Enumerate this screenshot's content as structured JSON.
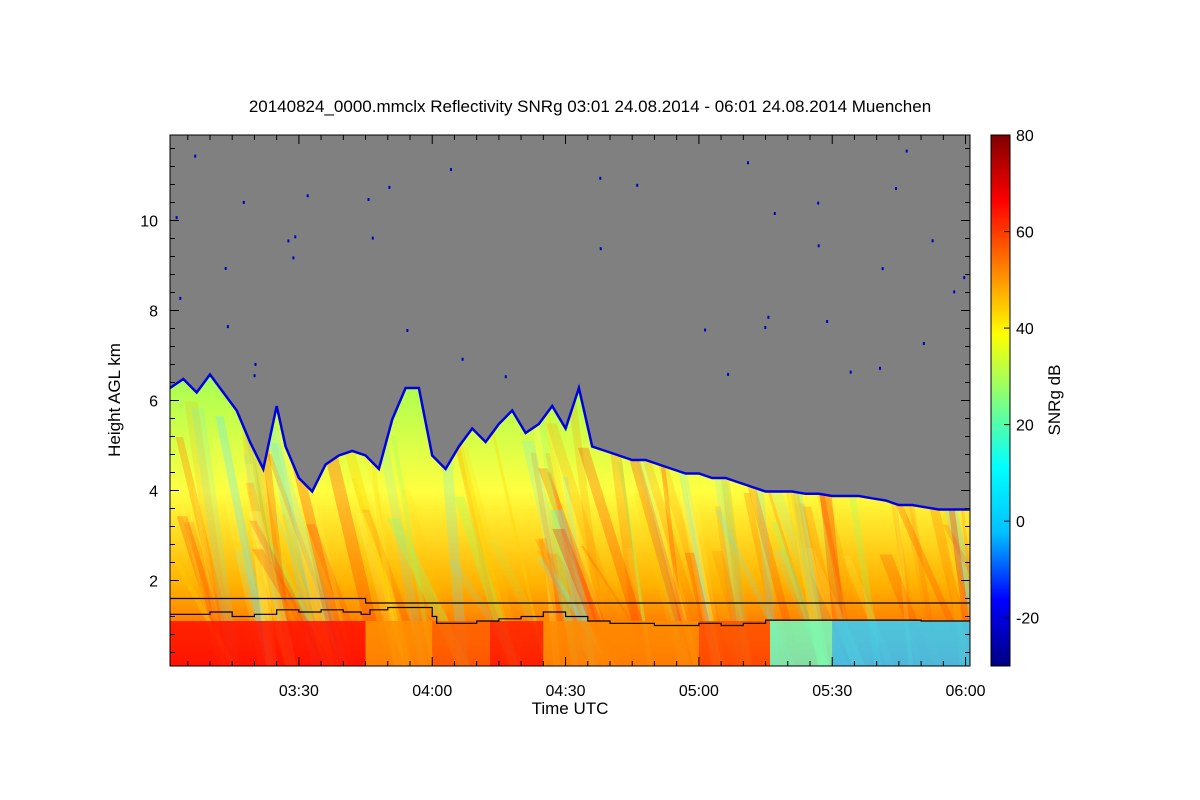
{
  "chart_data": {
    "type": "heatmap",
    "title": "20140824_0000.mmclx Reflectivity SNRg   03:01 24.08.2014 - 06:01 24.08.2014 Muenchen",
    "xlabel": "Time UTC",
    "ylabel": "Height AGL km",
    "x_range_min": [
      181,
      361
    ],
    "y_range_km": [
      0.1,
      11.9
    ],
    "x_ticks": [
      {
        "min": 210,
        "label": "03:30"
      },
      {
        "min": 240,
        "label": "04:00"
      },
      {
        "min": 270,
        "label": "04:30"
      },
      {
        "min": 300,
        "label": "05:00"
      },
      {
        "min": 330,
        "label": "05:30"
      },
      {
        "min": 360,
        "label": "06:00"
      }
    ],
    "y_ticks": [
      {
        "km": 2,
        "label": "2"
      },
      {
        "km": 4,
        "label": "4"
      },
      {
        "km": 6,
        "label": "6"
      },
      {
        "km": 8,
        "label": "8"
      },
      {
        "km": 10,
        "label": "10"
      }
    ],
    "colorbar": {
      "label": "SNRg dB",
      "range": [
        -30,
        80
      ],
      "ticks": [
        {
          "value": -20,
          "label": "-20"
        },
        {
          "value": 0,
          "label": "0"
        },
        {
          "value": 20,
          "label": "20"
        },
        {
          "value": 40,
          "label": "40"
        },
        {
          "value": 60,
          "label": "60"
        },
        {
          "value": 80,
          "label": "80"
        }
      ],
      "stops": [
        "#000080",
        "#0000ff",
        "#00bfff",
        "#00ffff",
        "#7fff7f",
        "#ffff00",
        "#ff8000",
        "#ff0000",
        "#800000"
      ]
    },
    "background_color": "#808080",
    "cloud_top_km": [
      [
        181,
        6.3
      ],
      [
        184,
        6.5
      ],
      [
        187,
        6.2
      ],
      [
        190,
        6.6
      ],
      [
        193,
        6.2
      ],
      [
        196,
        5.8
      ],
      [
        199,
        5.1
      ],
      [
        202,
        4.5
      ],
      [
        205,
        5.9
      ],
      [
        207,
        5.0
      ],
      [
        210,
        4.3
      ],
      [
        213,
        4.0
      ],
      [
        216,
        4.6
      ],
      [
        219,
        4.8
      ],
      [
        222,
        4.9
      ],
      [
        225,
        4.8
      ],
      [
        228,
        4.5
      ],
      [
        231,
        5.6
      ],
      [
        234,
        6.3
      ],
      [
        237,
        6.3
      ],
      [
        240,
        4.8
      ],
      [
        243,
        4.5
      ],
      [
        246,
        5.0
      ],
      [
        249,
        5.4
      ],
      [
        252,
        5.1
      ],
      [
        255,
        5.5
      ],
      [
        258,
        5.8
      ],
      [
        261,
        5.3
      ],
      [
        264,
        5.5
      ],
      [
        267,
        5.9
      ],
      [
        270,
        5.4
      ],
      [
        273,
        6.3
      ],
      [
        276,
        5.0
      ],
      [
        279,
        4.9
      ],
      [
        282,
        4.8
      ],
      [
        285,
        4.7
      ],
      [
        288,
        4.7
      ],
      [
        291,
        4.6
      ],
      [
        294,
        4.5
      ],
      [
        297,
        4.4
      ],
      [
        300,
        4.4
      ],
      [
        303,
        4.3
      ],
      [
        306,
        4.3
      ],
      [
        309,
        4.2
      ],
      [
        312,
        4.1
      ],
      [
        315,
        4.0
      ],
      [
        318,
        4.0
      ],
      [
        321,
        4.0
      ],
      [
        324,
        3.95
      ],
      [
        327,
        3.95
      ],
      [
        330,
        3.9
      ],
      [
        333,
        3.9
      ],
      [
        336,
        3.9
      ],
      [
        339,
        3.85
      ],
      [
        342,
        3.8
      ],
      [
        345,
        3.7
      ],
      [
        348,
        3.7
      ],
      [
        351,
        3.65
      ],
      [
        354,
        3.6
      ],
      [
        357,
        3.6
      ],
      [
        361,
        3.6
      ]
    ],
    "series": [
      {
        "name": "upper_line_km",
        "points": [
          [
            181,
            1.6
          ],
          [
            224.5,
            1.6
          ],
          [
            225,
            1.5
          ],
          [
            361,
            1.5
          ]
        ]
      },
      {
        "name": "lower_line_km",
        "points": [
          [
            181,
            1.25
          ],
          [
            190,
            1.3
          ],
          [
            195,
            1.2
          ],
          [
            200,
            1.25
          ],
          [
            205,
            1.35
          ],
          [
            210,
            1.3
          ],
          [
            215,
            1.35
          ],
          [
            220,
            1.3
          ],
          [
            224,
            1.25
          ],
          [
            226,
            1.35
          ],
          [
            230,
            1.4
          ],
          [
            235,
            1.4
          ],
          [
            238,
            1.4
          ],
          [
            240,
            1.2
          ],
          [
            241,
            1.05
          ],
          [
            250,
            1.1
          ],
          [
            255,
            1.15
          ],
          [
            260,
            1.2
          ],
          [
            265,
            1.3
          ],
          [
            270,
            1.2
          ],
          [
            275,
            1.1
          ],
          [
            280,
            1.05
          ],
          [
            290,
            1.0
          ],
          [
            300,
            1.05
          ],
          [
            305,
            1.0
          ],
          [
            310,
            1.05
          ],
          [
            315,
            1.12
          ],
          [
            320,
            1.12
          ],
          [
            330,
            1.12
          ],
          [
            340,
            1.12
          ],
          [
            350,
            1.1
          ],
          [
            361,
            1.1
          ]
        ]
      }
    ]
  }
}
